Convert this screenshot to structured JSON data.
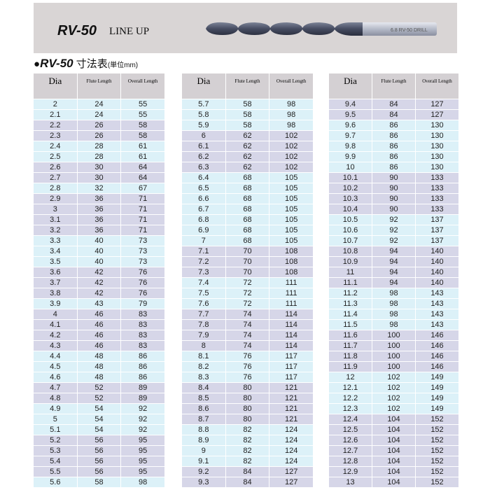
{
  "banner": {
    "model": "RV-50",
    "subtitle": "LINE UP",
    "drill_marking": "6.8 RV-50 DRILL"
  },
  "section": {
    "bullet": "●",
    "model": "RV-50",
    "title": "寸法表",
    "unit": "(単位mm)"
  },
  "columns": [
    "Dia",
    "Flute Length",
    "Overall Length"
  ],
  "colors": {
    "header": "#d4d0d3",
    "row_cyan": "#dcf1f8",
    "row_lavender": "#d6d6e8",
    "banner": "#d9d5d5"
  },
  "tables": [
    [
      [
        "2",
        "24",
        "55"
      ],
      [
        "2.1",
        "24",
        "55"
      ],
      [
        "2.2",
        "26",
        "58"
      ],
      [
        "2.3",
        "26",
        "58"
      ],
      [
        "2.4",
        "28",
        "61"
      ],
      [
        "2.5",
        "28",
        "61"
      ],
      [
        "2.6",
        "30",
        "64"
      ],
      [
        "2.7",
        "30",
        "64"
      ],
      [
        "2.8",
        "32",
        "67"
      ],
      [
        "2.9",
        "36",
        "71"
      ],
      [
        "3",
        "36",
        "71"
      ],
      [
        "3.1",
        "36",
        "71"
      ],
      [
        "3.2",
        "36",
        "71"
      ],
      [
        "3.3",
        "40",
        "73"
      ],
      [
        "3.4",
        "40",
        "73"
      ],
      [
        "3.5",
        "40",
        "73"
      ],
      [
        "3.6",
        "42",
        "76"
      ],
      [
        "3.7",
        "42",
        "76"
      ],
      [
        "3.8",
        "42",
        "76"
      ],
      [
        "3.9",
        "43",
        "79"
      ],
      [
        "4",
        "46",
        "83"
      ],
      [
        "4.1",
        "46",
        "83"
      ],
      [
        "4.2",
        "46",
        "83"
      ],
      [
        "4.3",
        "46",
        "83"
      ],
      [
        "4.4",
        "48",
        "86"
      ],
      [
        "4.5",
        "48",
        "86"
      ],
      [
        "4.6",
        "48",
        "86"
      ],
      [
        "4.7",
        "52",
        "89"
      ],
      [
        "4.8",
        "52",
        "89"
      ],
      [
        "4.9",
        "54",
        "92"
      ],
      [
        "5",
        "54",
        "92"
      ],
      [
        "5.1",
        "54",
        "92"
      ],
      [
        "5.2",
        "56",
        "95"
      ],
      [
        "5.3",
        "56",
        "95"
      ],
      [
        "5.4",
        "56",
        "95"
      ],
      [
        "5.5",
        "56",
        "95"
      ],
      [
        "5.6",
        "58",
        "98"
      ]
    ],
    [
      [
        "5.7",
        "58",
        "98"
      ],
      [
        "5.8",
        "58",
        "98"
      ],
      [
        "5.9",
        "58",
        "98"
      ],
      [
        "6",
        "62",
        "102"
      ],
      [
        "6.1",
        "62",
        "102"
      ],
      [
        "6.2",
        "62",
        "102"
      ],
      [
        "6.3",
        "62",
        "102"
      ],
      [
        "6.4",
        "68",
        "105"
      ],
      [
        "6.5",
        "68",
        "105"
      ],
      [
        "6.6",
        "68",
        "105"
      ],
      [
        "6.7",
        "68",
        "105"
      ],
      [
        "6.8",
        "68",
        "105"
      ],
      [
        "6.9",
        "68",
        "105"
      ],
      [
        "7",
        "68",
        "105"
      ],
      [
        "7.1",
        "70",
        "108"
      ],
      [
        "7.2",
        "70",
        "108"
      ],
      [
        "7.3",
        "70",
        "108"
      ],
      [
        "7.4",
        "72",
        "111"
      ],
      [
        "7.5",
        "72",
        "111"
      ],
      [
        "7.6",
        "72",
        "111"
      ],
      [
        "7.7",
        "74",
        "114"
      ],
      [
        "7.8",
        "74",
        "114"
      ],
      [
        "7.9",
        "74",
        "114"
      ],
      [
        "8",
        "74",
        "114"
      ],
      [
        "8.1",
        "76",
        "117"
      ],
      [
        "8.2",
        "76",
        "117"
      ],
      [
        "8.3",
        "76",
        "117"
      ],
      [
        "8.4",
        "80",
        "121"
      ],
      [
        "8.5",
        "80",
        "121"
      ],
      [
        "8.6",
        "80",
        "121"
      ],
      [
        "8.7",
        "80",
        "121"
      ],
      [
        "8.8",
        "82",
        "124"
      ],
      [
        "8.9",
        "82",
        "124"
      ],
      [
        "9",
        "82",
        "124"
      ],
      [
        "9.1",
        "82",
        "124"
      ],
      [
        "9.2",
        "84",
        "127"
      ],
      [
        "9.3",
        "84",
        "127"
      ]
    ],
    [
      [
        "9.4",
        "84",
        "127"
      ],
      [
        "9.5",
        "84",
        "127"
      ],
      [
        "9.6",
        "86",
        "130"
      ],
      [
        "9.7",
        "86",
        "130"
      ],
      [
        "9.8",
        "86",
        "130"
      ],
      [
        "9.9",
        "86",
        "130"
      ],
      [
        "10",
        "86",
        "130"
      ],
      [
        "10.1",
        "90",
        "133"
      ],
      [
        "10.2",
        "90",
        "133"
      ],
      [
        "10.3",
        "90",
        "133"
      ],
      [
        "10.4",
        "90",
        "133"
      ],
      [
        "10.5",
        "92",
        "137"
      ],
      [
        "10.6",
        "92",
        "137"
      ],
      [
        "10.7",
        "92",
        "137"
      ],
      [
        "10.8",
        "94",
        "140"
      ],
      [
        "10.9",
        "94",
        "140"
      ],
      [
        "11",
        "94",
        "140"
      ],
      [
        "11.1",
        "94",
        "140"
      ],
      [
        "11.2",
        "98",
        "143"
      ],
      [
        "11.3",
        "98",
        "143"
      ],
      [
        "11.4",
        "98",
        "143"
      ],
      [
        "11.5",
        "98",
        "143"
      ],
      [
        "11.6",
        "100",
        "146"
      ],
      [
        "11.7",
        "100",
        "146"
      ],
      [
        "11.8",
        "100",
        "146"
      ],
      [
        "11.9",
        "100",
        "146"
      ],
      [
        "12",
        "102",
        "149"
      ],
      [
        "12.1",
        "102",
        "149"
      ],
      [
        "12.2",
        "102",
        "149"
      ],
      [
        "12.3",
        "102",
        "149"
      ],
      [
        "12.4",
        "104",
        "152"
      ],
      [
        "12.5",
        "104",
        "152"
      ],
      [
        "12.6",
        "104",
        "152"
      ],
      [
        "12.7",
        "104",
        "152"
      ],
      [
        "12.8",
        "104",
        "152"
      ],
      [
        "12.9",
        "104",
        "152"
      ],
      [
        "13",
        "104",
        "152"
      ]
    ]
  ]
}
